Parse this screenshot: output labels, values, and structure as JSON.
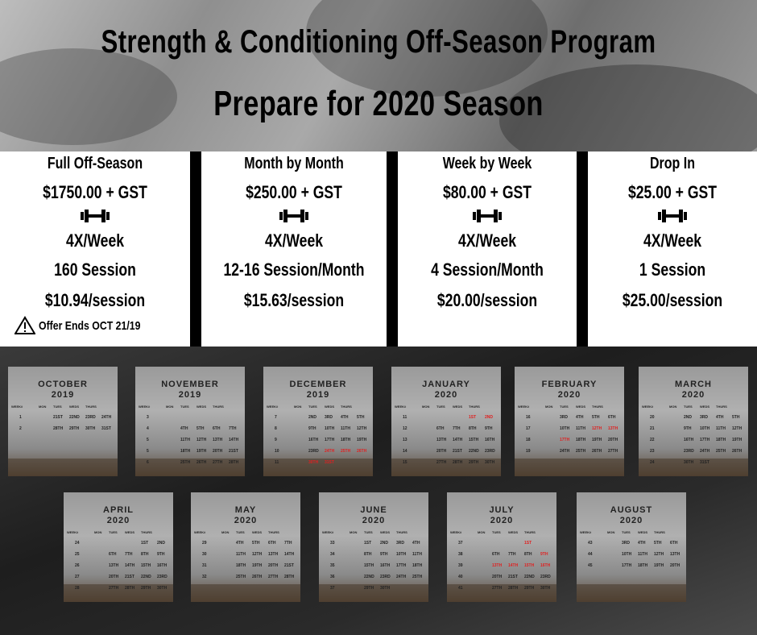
{
  "title_line1": "Strength & Conditioning Off-Season Program",
  "title_line2": "Prepare for 2020 Season",
  "plans": [
    {
      "name": "Full Off-Season",
      "price": "$1750.00 + GST",
      "frequency": "4X/Week",
      "sessions": "160 Session",
      "per_session": "$10.94/session"
    },
    {
      "name": "Month by Month",
      "price": "$250.00 + GST",
      "frequency": "4X/Week",
      "sessions": "12-16 Session/Month",
      "per_session": "$15.63/session"
    },
    {
      "name": "Week by Week",
      "price": "$80.00 + GST",
      "frequency": "4X/Week",
      "sessions": "4 Session/Month",
      "per_session": "$20.00/session"
    },
    {
      "name": "Drop In",
      "price": "$25.00 + GST",
      "frequency": "4X/Week",
      "sessions": "1 Session",
      "per_session": "$25.00/session"
    }
  ],
  "offer": "Offer Ends OCT 21/19",
  "icons": {
    "dumbbell": "dumbbell-icon",
    "warning": "warning-icon"
  },
  "calendar_headers": [
    "WEEK#",
    "MON",
    "TUES",
    "WEDS",
    "THURS"
  ],
  "calendars": [
    {
      "month": "OCTOBER",
      "year": "2019",
      "rows": [
        [
          "1",
          "",
          "21ST",
          "22ND",
          "23RD",
          "24TH"
        ],
        [
          "2",
          "",
          "28TH",
          "29TH",
          "30TH",
          "31ST"
        ]
      ]
    },
    {
      "month": "NOVEMBER",
      "year": "2019",
      "rows": [
        [
          "3",
          "",
          "",
          "",
          "",
          ""
        ],
        [
          "4",
          "",
          "4TH",
          "5TH",
          "6TH",
          "7TH"
        ],
        [
          "5",
          "",
          "11TH",
          "12TH",
          "13TH",
          "14TH"
        ],
        [
          "5",
          "",
          "18TH",
          "19TH",
          "20TH",
          "21ST"
        ],
        [
          "6",
          "",
          "25TH",
          "26TH",
          "27TH",
          "28TH"
        ]
      ]
    },
    {
      "month": "DECEMBER",
      "year": "2019",
      "rows": [
        [
          "7",
          "",
          "2ND",
          "3RD",
          "4TH",
          "5TH"
        ],
        [
          "8",
          "",
          "9TH",
          "10TH",
          "11TH",
          "12TH"
        ],
        [
          "9",
          "",
          "16TH",
          "17TH",
          "18TH",
          "19TH"
        ],
        [
          "10",
          "",
          "23RD",
          "24TH*",
          "25TH*",
          "26TH*"
        ],
        [
          "11",
          "",
          "30TH*",
          "31ST*",
          "",
          ""
        ]
      ]
    },
    {
      "month": "JANUARY",
      "year": "2020",
      "rows": [
        [
          "11",
          "",
          "",
          "",
          "1ST*",
          "2ND*"
        ],
        [
          "12",
          "",
          "6TH",
          "7TH",
          "8TH",
          "9TH"
        ],
        [
          "13",
          "",
          "13TH",
          "14TH",
          "15TH",
          "16TH"
        ],
        [
          "14",
          "",
          "20TH",
          "21ST",
          "22ND",
          "23RD"
        ],
        [
          "15",
          "",
          "27TH",
          "28TH",
          "29TH",
          "30TH"
        ]
      ]
    },
    {
      "month": "FEBRUARY",
      "year": "2020",
      "rows": [
        [
          "16",
          "",
          "3RD",
          "4TH",
          "5TH",
          "6TH"
        ],
        [
          "17",
          "",
          "10TH",
          "11TH",
          "12TH*",
          "13TH*"
        ],
        [
          "18",
          "",
          "17TH*",
          "18TH",
          "19TH",
          "20TH"
        ],
        [
          "19",
          "",
          "24TH",
          "25TH",
          "26TH",
          "27TH"
        ]
      ]
    },
    {
      "month": "MARCH",
      "year": "2020",
      "rows": [
        [
          "20",
          "",
          "2ND",
          "3RD",
          "4TH",
          "5TH"
        ],
        [
          "21",
          "",
          "9TH",
          "10TH",
          "11TH",
          "12TH"
        ],
        [
          "22",
          "",
          "16TH",
          "17TH",
          "18TH",
          "19TH"
        ],
        [
          "23",
          "",
          "23RD",
          "24TH",
          "25TH",
          "26TH"
        ],
        [
          "24",
          "",
          "30TH",
          "31ST",
          "",
          ""
        ]
      ]
    },
    {
      "month": "APRIL",
      "year": "2020",
      "rows": [
        [
          "24",
          "",
          "",
          "",
          "1ST",
          "2ND"
        ],
        [
          "25",
          "",
          "6TH",
          "7TH",
          "8TH",
          "9TH"
        ],
        [
          "26",
          "",
          "13TH",
          "14TH",
          "15TH",
          "16TH"
        ],
        [
          "27",
          "",
          "20TH",
          "21ST",
          "22ND",
          "23RD"
        ],
        [
          "28",
          "",
          "27TH",
          "28TH",
          "29TH",
          "30TH"
        ]
      ]
    },
    {
      "month": "MAY",
      "year": "2020",
      "rows": [
        [
          "29",
          "",
          "4TH",
          "5TH",
          "6TH",
          "7TH"
        ],
        [
          "30",
          "",
          "11TH",
          "12TH",
          "13TH",
          "14TH"
        ],
        [
          "31",
          "",
          "18TH",
          "19TH",
          "20TH",
          "21ST"
        ],
        [
          "32",
          "",
          "25TH",
          "26TH",
          "27TH",
          "28TH"
        ]
      ]
    },
    {
      "month": "JUNE",
      "year": "2020",
      "rows": [
        [
          "33",
          "",
          "1ST",
          "2ND",
          "3RD",
          "4TH"
        ],
        [
          "34",
          "",
          "8TH",
          "9TH",
          "10TH",
          "11TH"
        ],
        [
          "35",
          "",
          "15TH",
          "16TH",
          "17TH",
          "18TH"
        ],
        [
          "36",
          "",
          "22ND",
          "23RD",
          "24TH",
          "25TH"
        ],
        [
          "37",
          "",
          "29TH",
          "30TH",
          "",
          ""
        ]
      ]
    },
    {
      "month": "JULY",
      "year": "2020",
      "rows": [
        [
          "37",
          "",
          "",
          "",
          "1ST*",
          ""
        ],
        [
          "38",
          "",
          "6TH",
          "7TH",
          "8TH",
          "9TH*"
        ],
        [
          "39",
          "",
          "13TH*",
          "14TH*",
          "15TH*",
          "16TH*"
        ],
        [
          "40",
          "",
          "20TH",
          "21ST",
          "22ND",
          "23RD"
        ],
        [
          "41",
          "",
          "27TH",
          "28TH",
          "29TH",
          "30TH"
        ]
      ]
    },
    {
      "month": "AUGUST",
      "year": "2020",
      "rows": [
        [
          "43",
          "",
          "3RD",
          "4TH",
          "5TH",
          "6TH"
        ],
        [
          "44",
          "",
          "10TH",
          "11TH",
          "12TH",
          "13TH"
        ],
        [
          "45",
          "",
          "17TH",
          "18TH",
          "19TH",
          "20TH"
        ]
      ]
    }
  ]
}
